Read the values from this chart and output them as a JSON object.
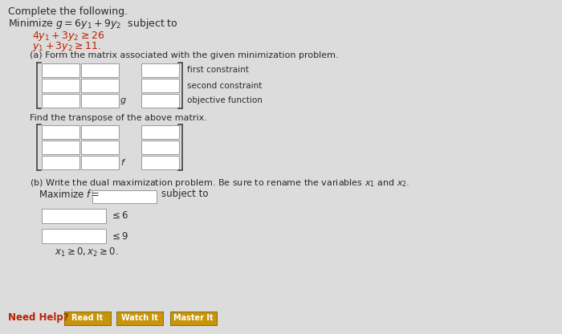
{
  "background_color": "#dcdcdc",
  "title_text": "Complete the following.",
  "problem_line": "Minimize $g = 6y_1 + 9y_2$  subject to",
  "constraint1": "$4y_1 + 3y_2 \\geq 26$",
  "constraint2": "$y_1 + 3y_2 \\geq 11.$",
  "part_a_text": "(a) Form the matrix associated with the given minimization problem.",
  "first_constraint_label": "first constraint",
  "second_constraint_label": "second constraint",
  "objective_function_label": "objective function",
  "transpose_text": "Find the transpose of the above matrix.",
  "part_b_text": "(b) Write the dual maximization problem. Be sure to rename the variables $x_1$ and $x_2$.",
  "maximize_label": "Maximize $f =$",
  "subject_to": "subject to",
  "leq6": "$\\leq 6$",
  "leq9": "$\\leq 9$",
  "nonneg": "$x_1 \\geq 0, x_2 \\geq 0.$",
  "need_help": "Need Help?",
  "read_it": "Read It",
  "watch_it": "Watch It",
  "master_it": "Master It",
  "box_edge": "#999999",
  "button_color": "#c8940a",
  "text_color": "#2a2a2a",
  "red_color": "#bb2200",
  "btn_text_color": "#ffffff"
}
